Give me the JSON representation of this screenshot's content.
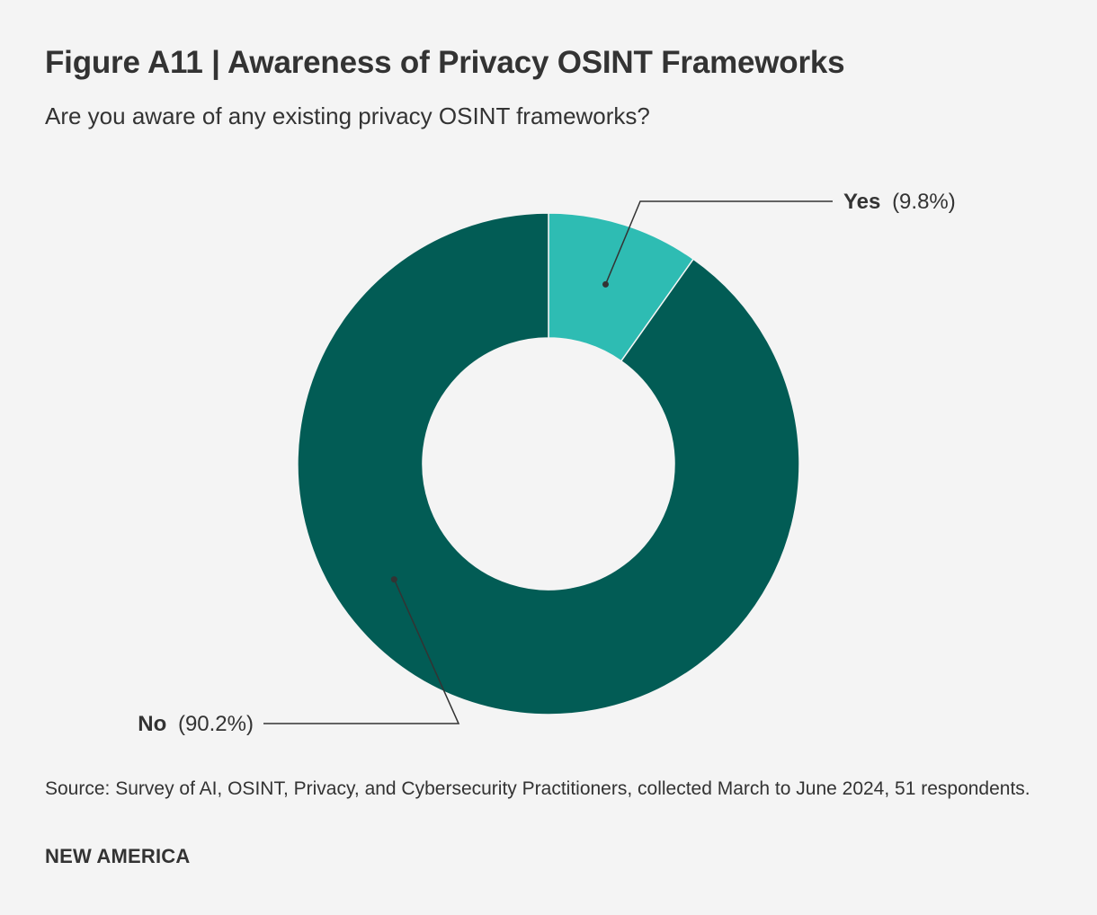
{
  "title": "Figure A11 | Awareness of Privacy OSINT Frameworks",
  "subtitle": "Are you aware of any existing privacy OSINT frameworks?",
  "chart_data": {
    "type": "pie",
    "variant": "donut",
    "slices": [
      {
        "name": "Yes",
        "value": 9.8,
        "value_label": "(9.8%)",
        "color": "#2ebcb3"
      },
      {
        "name": "No",
        "value": 90.2,
        "value_label": "(90.2%)",
        "color": "#025c55"
      }
    ],
    "legend": "none"
  },
  "source": "Source: Survey of AI, OSINT, Privacy, and Cybersecurity Practitioners, collected March to June 2024, 51 respondents.",
  "brand": "NEW AMERICA",
  "colors": {
    "background": "#f4f4f4",
    "text": "#333333",
    "leader": "#333333"
  }
}
